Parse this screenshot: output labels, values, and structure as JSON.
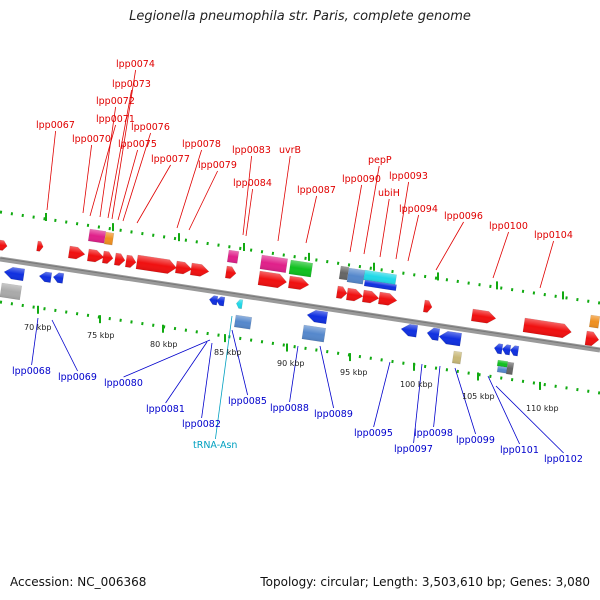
{
  "title": "Legionella pneumophila str. Paris, complete genome",
  "footer": {
    "accession": "Accession: NC_006368",
    "info": "Topology: circular; Length: 3,503,610 bp; Genes: 3,080"
  },
  "colors": {
    "plus_label": "#e00000",
    "minus_label": "#0000cc",
    "trna_label": "#00a0c0",
    "backbone": "#888888",
    "tick": "#11aa11"
  },
  "scale_labels": [
    "70 kbp",
    "75 kbp",
    "80 kbp",
    "85 kbp",
    "90 kbp",
    "95 kbp",
    "100 kbp",
    "105 kbp",
    "110 kbp"
  ],
  "top_labels": [
    "lpp0067",
    "lpp0070",
    "lpp0071",
    "lpp0072",
    "lpp0073",
    "lpp0074",
    "lpp0075",
    "lpp0076",
    "lpp0077",
    "lpp0078",
    "lpp0079",
    "lpp0083",
    "lpp0084",
    "uvrB",
    "lpp0087",
    "lpp0090",
    "pepP",
    "ubiH",
    "lpp0093",
    "lpp0094",
    "lpp0096",
    "lpp0100",
    "lpp0104"
  ],
  "bottom_labels": [
    "lpp0068",
    "lpp0069",
    "lpp0080",
    "lpp0081",
    "lpp0082",
    "tRNA-Asn",
    "lpp0085",
    "lpp0088",
    "lpp0089",
    "lpp0095",
    "lpp0097",
    "lpp0098",
    "lpp0099",
    "lpp0101",
    "lpp0102"
  ]
}
